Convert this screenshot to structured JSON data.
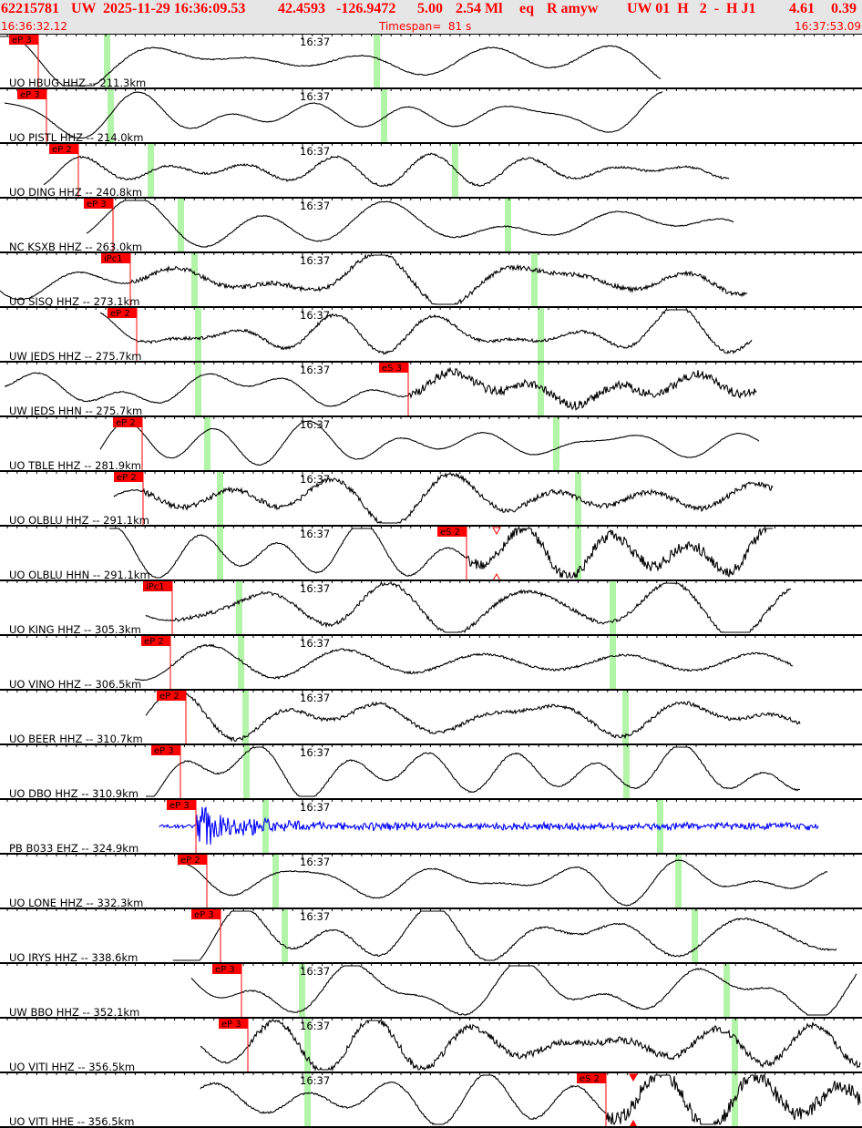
{
  "header": {
    "event_id": "62215781",
    "network": "UW",
    "origin": "2025-11-29 16:36:09.53",
    "lat": "42.4593",
    "lon": "-126.9472",
    "depth": "5.00",
    "magnitude": "2.54 Ml",
    "type": "eq",
    "review": "R amyw",
    "info": "UW 01  H   2  -  H J1",
    "val1": "4.61",
    "val2": "0.39",
    "start_time": "16:36:32.12",
    "timespan": "Timespan=  81 s",
    "end_time": "16:37:53.09"
  },
  "minute_label": "16:37",
  "colors": {
    "pick": "#ff0000",
    "phase_window": "#b3f5a8",
    "trace": "#000000",
    "trace_alt": "#0000ff",
    "header_text": "#ff0000"
  },
  "traces": [
    {
      "label": "UO HBUG HHZ -- 211.3km",
      "pick": "eP 3"
    },
    {
      "label": "UO PISTL HHZ -- 214.0km",
      "pick": "eP 3"
    },
    {
      "label": "UO DING HHZ -- 240.8km",
      "pick": "eP 2"
    },
    {
      "label": "NC KSXB HHZ -- 263.0km",
      "pick": "eP 3"
    },
    {
      "label": "UO SISQ HHZ -- 273.1km",
      "pick": "iPc1"
    },
    {
      "label": "UW JEDS HHZ -- 275.7km",
      "pick": "eP 2"
    },
    {
      "label": "UW JEDS HHN -- 275.7km",
      "pick": "eS 3"
    },
    {
      "label": "UO TBLE HHZ -- 281.9km",
      "pick": "eP 2"
    },
    {
      "label": "UO OLBLU HHZ -- 291.1km",
      "pick": "eP 2"
    },
    {
      "label": "UO OLBLU HHN -- 291.1km",
      "pick": "eS 2"
    },
    {
      "label": "UO KING HHZ -- 305.3km",
      "pick": "iPc1"
    },
    {
      "label": "UO VINO HHZ -- 306.5km",
      "pick": "eP 2"
    },
    {
      "label": "UO BEER HHZ -- 310.7km",
      "pick": "eP 2"
    },
    {
      "label": "UO DBO HHZ -- 310.9km",
      "pick": "eP 3"
    },
    {
      "label": "PB B033 EHZ -- 324.9km",
      "pick": "eP 3"
    },
    {
      "label": "UO LONE HHZ -- 332.3km",
      "pick": "eP 2"
    },
    {
      "label": "UO IRYS HHZ -- 338.6km",
      "pick": "eP 3"
    },
    {
      "label": "UW BBO HHZ -- 352.1km",
      "pick": "eP 3"
    },
    {
      "label": "UO VITI HHZ -- 356.5km",
      "pick": "eP 3"
    },
    {
      "label": "UO VITI HHE -- 356.5km",
      "pick": "eS 2"
    }
  ]
}
